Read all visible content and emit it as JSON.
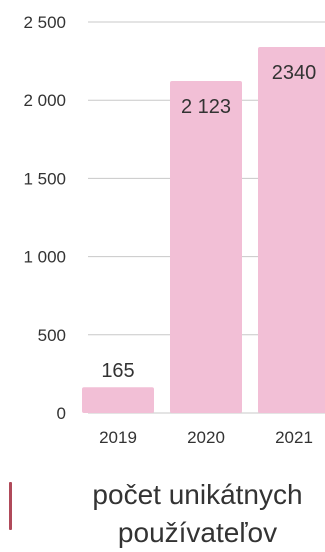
{
  "chart_data": {
    "type": "bar",
    "categories": [
      "2019",
      "2020",
      "2021"
    ],
    "values": [
      165,
      2123,
      2340
    ],
    "value_labels": [
      "165",
      "2 123",
      "2340"
    ],
    "y_ticks": [
      0,
      500,
      1000,
      1500,
      2000,
      2500
    ],
    "y_tick_labels": [
      "0",
      "500",
      "1 000",
      "1 500",
      "2 000",
      "2 500"
    ],
    "ylim": [
      0,
      2500
    ],
    "grid": true,
    "legend": {
      "label": "počet unikátnych používateľov",
      "placement": "bottom"
    },
    "colors": {
      "bar": "#f2bfd6",
      "swatch": "#b04a5a",
      "grid": "#c8c8c8",
      "text": "#333333"
    }
  }
}
